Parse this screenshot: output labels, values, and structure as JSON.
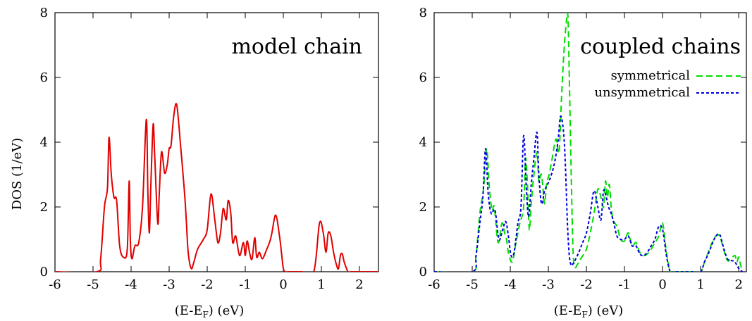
{
  "chart_data": [
    {
      "type": "line",
      "title": "model chain",
      "xlabel": "(E-E_F) (eV)",
      "ylabel": "DOS (1/eV)",
      "xlim": [
        -6,
        2.5
      ],
      "ylim": [
        0,
        8
      ],
      "xticks": [
        -6,
        -5,
        -4,
        -3,
        -2,
        -1,
        0,
        1,
        2
      ],
      "yticks": [
        0,
        2,
        4,
        6,
        8
      ],
      "grid": false,
      "series": [
        {
          "color": "#e00000",
          "dash": "solid",
          "x": [
            -6,
            -4.9,
            -4.8,
            -4.7,
            -4.62,
            -4.58,
            -4.52,
            -4.45,
            -4.38,
            -4.3,
            -4.2,
            -4.1,
            -4.05,
            -4.02,
            -3.98,
            -3.9,
            -3.8,
            -3.7,
            -3.6,
            -3.56,
            -3.52,
            -3.48,
            -3.42,
            -3.38,
            -3.3,
            -3.26,
            -3.2,
            -3.12,
            -3.05,
            -3.0,
            -2.95,
            -2.88,
            -2.8,
            -2.7,
            -2.6,
            -2.55,
            -2.5,
            -2.42,
            -2.35,
            -2.25,
            -2.1,
            -2.0,
            -1.9,
            -1.8,
            -1.72,
            -1.65,
            -1.58,
            -1.5,
            -1.45,
            -1.38,
            -1.33,
            -1.25,
            -1.15,
            -1.05,
            -1.0,
            -0.95,
            -0.88,
            -0.82,
            -0.75,
            -0.7,
            -0.63,
            -0.55,
            -0.45,
            -0.35,
            -0.3,
            -0.2,
            -0.1,
            -0.05,
            0.0,
            0.05,
            0.12,
            0.2,
            0.3,
            0.5,
            0.8,
            0.95,
            1.05,
            1.12,
            1.18,
            1.25,
            1.32,
            1.4,
            1.45,
            1.5,
            1.55,
            1.6,
            1.7,
            1.78,
            1.85,
            1.9,
            2.0,
            2.5
          ],
          "y": [
            0,
            0,
            0.4,
            2.0,
            2.6,
            4.15,
            3.0,
            2.3,
            2.2,
            0.8,
            0.45,
            0.7,
            2.8,
            1.0,
            0.4,
            0.8,
            0.9,
            2.0,
            4.7,
            2.5,
            1.2,
            2.7,
            4.55,
            3.6,
            1.5,
            2.4,
            3.7,
            3.05,
            3.3,
            3.8,
            3.9,
            4.8,
            5.15,
            3.9,
            2.5,
            1.6,
            0.6,
            0.1,
            0.3,
            0.7,
            1.0,
            1.3,
            2.4,
            1.6,
            0.9,
            1.2,
            1.95,
            1.6,
            2.2,
            1.8,
            0.9,
            1.1,
            0.5,
            0.9,
            0.5,
            0.95,
            0.55,
            0.4,
            1.05,
            0.45,
            0.6,
            0.4,
            0.65,
            0.95,
            1.2,
            1.75,
            1.1,
            0.6,
            0.1,
            0,
            0,
            0,
            0,
            0,
            0,
            1.5,
            1.2,
            0.6,
            1.2,
            1.1,
            0.6,
            0.2,
            0.1,
            0.5,
            0.55,
            0.3,
            0,
            0,
            0,
            0,
            0,
            0
          ]
        }
      ]
    },
    {
      "type": "line",
      "title": "coupled chains",
      "xlabel": "(E-E_F) (eV)",
      "ylabel": "",
      "xlim": [
        -6,
        2.2
      ],
      "ylim": [
        0,
        8
      ],
      "xticks": [
        -6,
        -5,
        -4,
        -3,
        -2,
        -1,
        0,
        1,
        2
      ],
      "yticks": [
        0,
        2,
        4,
        6,
        8
      ],
      "grid": false,
      "legend_position": "top-right",
      "series": [
        {
          "name": "symmetrical",
          "color": "#00dd00",
          "dash": "long",
          "x": [
            -6,
            -5.0,
            -4.9,
            -4.8,
            -4.7,
            -4.62,
            -4.55,
            -4.48,
            -4.42,
            -4.32,
            -4.22,
            -4.15,
            -4.1,
            -4.05,
            -3.95,
            -3.85,
            -3.75,
            -3.65,
            -3.6,
            -3.55,
            -3.5,
            -3.45,
            -3.38,
            -3.3,
            -3.25,
            -3.18,
            -3.1,
            -3.05,
            -2.98,
            -2.9,
            -2.8,
            -2.72,
            -2.65,
            -2.58,
            -2.52,
            -2.5,
            -2.48,
            -2.45,
            -2.4,
            -2.35,
            -2.3,
            -2.25,
            -2.15,
            -2.0,
            -1.9,
            -1.8,
            -1.7,
            -1.62,
            -1.55,
            -1.5,
            -1.45,
            -1.4,
            -1.35,
            -1.3,
            -1.2,
            -1.1,
            -1.0,
            -0.9,
            -0.8,
            -0.7,
            -0.6,
            -0.5,
            -0.4,
            -0.3,
            -0.2,
            -0.1,
            0.0,
            0.1,
            0.2,
            0.3,
            0.5,
            0.8,
            1.0,
            1.1,
            1.2,
            1.3,
            1.4,
            1.5,
            1.6,
            1.7,
            1.8,
            1.9,
            1.95,
            2.0,
            2.05,
            2.1
          ],
          "y": [
            0,
            0,
            0.5,
            1.8,
            2.6,
            3.8,
            2.6,
            1.9,
            2.0,
            0.9,
            1.5,
            1.2,
            1.0,
            0.6,
            0.3,
            0.9,
            1.5,
            2.0,
            3.5,
            2.7,
            1.3,
            2.1,
            3.0,
            3.7,
            2.8,
            3.0,
            2.1,
            2.7,
            3.0,
            3.5,
            4.1,
            3.7,
            5.5,
            7.0,
            7.8,
            8.0,
            7.7,
            6.0,
            3.0,
            0.6,
            0.15,
            0.2,
            0.4,
            0.7,
            1.2,
            1.8,
            2.55,
            2.3,
            2.0,
            2.8,
            2.3,
            2.7,
            2.0,
            1.6,
            1.4,
            1.0,
            0.95,
            1.2,
            0.8,
            0.9,
            0.6,
            0.5,
            0.55,
            0.7,
            0.9,
            1.1,
            1.5,
            0.6,
            0,
            0,
            0,
            0,
            0,
            0.3,
            0.6,
            0.9,
            1.1,
            1.1,
            0.7,
            0.35,
            0.4,
            0.5,
            0.3,
            0.45,
            0.2,
            0.0
          ]
        },
        {
          "name": "unsymmetrical",
          "color": "#0000dd",
          "dash": "short",
          "x": [
            -6,
            -5.0,
            -4.9,
            -4.8,
            -4.72,
            -4.65,
            -4.58,
            -4.5,
            -4.4,
            -4.3,
            -4.2,
            -4.12,
            -4.05,
            -3.98,
            -3.9,
            -3.8,
            -3.72,
            -3.65,
            -3.58,
            -3.52,
            -3.45,
            -3.38,
            -3.3,
            -3.25,
            -3.18,
            -3.1,
            -3.02,
            -2.95,
            -2.85,
            -2.75,
            -2.68,
            -2.6,
            -2.55,
            -2.5,
            -2.45,
            -2.4,
            -2.35,
            -2.3,
            -2.2,
            -2.1,
            -2.0,
            -1.9,
            -1.8,
            -1.7,
            -1.62,
            -1.55,
            -1.48,
            -1.42,
            -1.35,
            -1.28,
            -1.2,
            -1.1,
            -1.0,
            -0.9,
            -0.8,
            -0.7,
            -0.6,
            -0.5,
            -0.4,
            -0.3,
            -0.2,
            -0.1,
            0.0,
            0.1,
            0.2,
            0.3,
            0.5,
            0.8,
            1.0,
            1.1,
            1.2,
            1.3,
            1.4,
            1.5,
            1.6,
            1.7,
            1.8,
            1.9,
            2.0,
            2.1
          ],
          "y": [
            0,
            0,
            0.5,
            1.5,
            2.3,
            3.8,
            2.4,
            1.8,
            1.9,
            1.0,
            1.3,
            1.55,
            1.1,
            0.5,
            0.6,
            1.5,
            2.0,
            4.2,
            2.6,
            1.7,
            2.7,
            3.5,
            4.3,
            3.0,
            2.1,
            2.5,
            2.7,
            2.9,
            3.3,
            4.0,
            4.8,
            4.3,
            3.2,
            1.5,
            0.5,
            0.2,
            0.25,
            0.35,
            0.6,
            0.9,
            1.2,
            1.8,
            2.5,
            2.0,
            1.6,
            2.5,
            2.3,
            2.0,
            1.8,
            1.5,
            1.1,
            1.0,
            1.0,
            1.1,
            0.8,
            0.8,
            0.55,
            0.5,
            0.6,
            0.8,
            1.0,
            1.4,
            1.3,
            0.5,
            0,
            0,
            0,
            0,
            0,
            0.3,
            0.55,
            0.85,
            1.1,
            1.15,
            0.75,
            0.4,
            0.35,
            0.3,
            0.1,
            0.0
          ]
        }
      ]
    }
  ]
}
